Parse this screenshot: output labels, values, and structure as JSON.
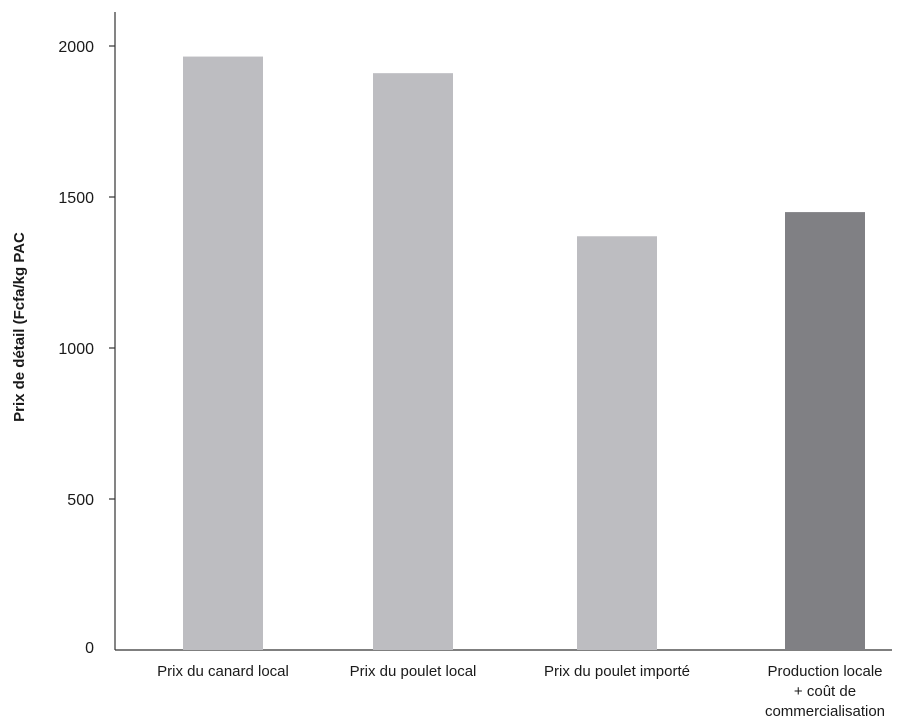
{
  "chart_data": {
    "type": "bar",
    "title": "",
    "xlabel": "",
    "ylabel": "Prix de détail (Fcfa/kg PAC",
    "ylim": [
      0,
      2000
    ],
    "yticks": [
      0,
      500,
      1000,
      1500,
      2000
    ],
    "grid": false,
    "categories": [
      [
        "Prix du canard local"
      ],
      [
        "Prix du poulet local"
      ],
      [
        "Prix du poulet importé"
      ],
      [
        "Production locale",
        "+ coût de",
        "commercialisation"
      ]
    ],
    "values": [
      1965,
      1910,
      1370,
      1450
    ],
    "colors": [
      "#bdbdc1",
      "#bdbdc1",
      "#bdbdc1",
      "#808084"
    ]
  }
}
